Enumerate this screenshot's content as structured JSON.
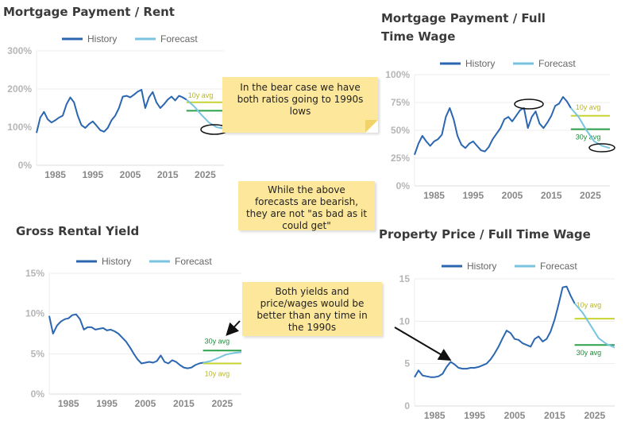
{
  "charts": [
    {
      "title": "Mortgage Payment / Rent",
      "legend": [
        "History",
        "Forecast"
      ],
      "avg_labels": [
        "10y avg"
      ],
      "chart_data": {
        "type": "line",
        "title": "Mortgage Payment / Rent",
        "xlim": [
          1980,
          2030
        ],
        "ylim": [
          0,
          300
        ],
        "x_ticks": [
          1985,
          1995,
          2005,
          2015,
          2025
        ],
        "y_ticks": [
          0,
          100,
          200,
          300
        ],
        "y_tick_labels": [
          "0%",
          "100%",
          "200%",
          "300%"
        ],
        "series": [
          {
            "name": "History",
            "color": "#2b66b1",
            "points": [
              [
                1980,
                85
              ],
              [
                1981,
                125
              ],
              [
                1982,
                140
              ],
              [
                1983,
                120
              ],
              [
                1984,
                112
              ],
              [
                1985,
                118
              ],
              [
                1986,
                125
              ],
              [
                1987,
                130
              ],
              [
                1988,
                160
              ],
              [
                1989,
                178
              ],
              [
                1990,
                165
              ],
              [
                1991,
                130
              ],
              [
                1992,
                105
              ],
              [
                1993,
                98
              ],
              [
                1994,
                108
              ],
              [
                1995,
                115
              ],
              [
                1996,
                104
              ],
              [
                1997,
                92
              ],
              [
                1998,
                88
              ],
              [
                1999,
                98
              ],
              [
                2000,
                118
              ],
              [
                2001,
                130
              ],
              [
                2002,
                150
              ],
              [
                2003,
                180
              ],
              [
                2004,
                182
              ],
              [
                2005,
                178
              ],
              [
                2006,
                185
              ],
              [
                2007,
                193
              ],
              [
                2008,
                198
              ],
              [
                2009,
                150
              ],
              [
                2010,
                178
              ],
              [
                2011,
                192
              ],
              [
                2012,
                165
              ],
              [
                2013,
                150
              ],
              [
                2014,
                160
              ],
              [
                2015,
                172
              ],
              [
                2016,
                180
              ],
              [
                2017,
                170
              ],
              [
                2018,
                182
              ],
              [
                2019,
                178
              ],
              [
                2020,
                172
              ]
            ]
          },
          {
            "name": "Forecast",
            "color": "#79c4e0",
            "points": [
              [
                2020,
                172
              ],
              [
                2022,
                155
              ],
              [
                2024,
                132
              ],
              [
                2026,
                112
              ],
              [
                2028,
                100
              ],
              [
                2030,
                96
              ]
            ]
          }
        ],
        "reference_lines": [
          {
            "label": "10y avg",
            "value": 165,
            "x_start": 2020,
            "color": "#c6d431"
          },
          {
            "label": "",
            "value": 143,
            "x_start": 2020,
            "color": "#2aa14a"
          }
        ]
      }
    },
    {
      "title": "Mortgage Payment / Full Time Wage",
      "legend": [
        "History",
        "Forecast"
      ],
      "avg_labels": [
        "10y avg",
        "30y avg"
      ],
      "chart_data": {
        "type": "line",
        "title": "Mortgage Payment / Full Time Wage",
        "xlim": [
          1980,
          2030
        ],
        "ylim": [
          0,
          100
        ],
        "x_ticks": [
          1985,
          1995,
          2005,
          2015,
          2025
        ],
        "y_ticks": [
          0,
          25,
          50,
          75,
          100
        ],
        "y_tick_labels": [
          "0%",
          "25%",
          "50%",
          "75%",
          "100%"
        ],
        "series": [
          {
            "name": "History",
            "color": "#2b66b1",
            "points": [
              [
                1980,
                28
              ],
              [
                1981,
                38
              ],
              [
                1982,
                45
              ],
              [
                1983,
                40
              ],
              [
                1984,
                36
              ],
              [
                1985,
                40
              ],
              [
                1986,
                42
              ],
              [
                1987,
                46
              ],
              [
                1988,
                62
              ],
              [
                1989,
                70
              ],
              [
                1990,
                60
              ],
              [
                1991,
                45
              ],
              [
                1992,
                37
              ],
              [
                1993,
                34
              ],
              [
                1994,
                38
              ],
              [
                1995,
                40
              ],
              [
                1996,
                36
              ],
              [
                1997,
                32
              ],
              [
                1998,
                31
              ],
              [
                1999,
                35
              ],
              [
                2000,
                42
              ],
              [
                2001,
                47
              ],
              [
                2002,
                52
              ],
              [
                2003,
                60
              ],
              [
                2004,
                62
              ],
              [
                2005,
                58
              ],
              [
                2006,
                63
              ],
              [
                2007,
                68
              ],
              [
                2008,
                70
              ],
              [
                2009,
                52
              ],
              [
                2010,
                62
              ],
              [
                2011,
                67
              ],
              [
                2012,
                56
              ],
              [
                2013,
                52
              ],
              [
                2014,
                57
              ],
              [
                2015,
                63
              ],
              [
                2016,
                72
              ],
              [
                2017,
                74
              ],
              [
                2018,
                80
              ],
              [
                2019,
                76
              ],
              [
                2020,
                70
              ]
            ]
          },
          {
            "name": "Forecast",
            "color": "#79c4e0",
            "points": [
              [
                2020,
                70
              ],
              [
                2022,
                62
              ],
              [
                2024,
                50
              ],
              [
                2026,
                40
              ],
              [
                2028,
                36
              ],
              [
                2030,
                34
              ]
            ]
          }
        ],
        "reference_lines": [
          {
            "label": "10y avg",
            "value": 63,
            "x_start": 2020,
            "color": "#c6d431"
          },
          {
            "label": "30y avg",
            "value": 51,
            "x_start": 2020,
            "color": "#2aa14a"
          }
        ]
      }
    },
    {
      "title": "Gross Rental Yield",
      "legend": [
        "History",
        "Forecast"
      ],
      "avg_labels": [
        "30y avg",
        "10y avg"
      ],
      "chart_data": {
        "type": "line",
        "title": "Gross Rental Yield",
        "xlim": [
          1980,
          2030
        ],
        "ylim": [
          0,
          15
        ],
        "x_ticks": [
          1985,
          1995,
          2005,
          2015,
          2025
        ],
        "y_ticks": [
          0,
          5,
          10,
          15
        ],
        "y_tick_labels": [
          "0%",
          "5%",
          "10%",
          "15%"
        ],
        "series": [
          {
            "name": "History",
            "color": "#2b66b1",
            "points": [
              [
                1980,
                9.7
              ],
              [
                1981,
                7.5
              ],
              [
                1982,
                8.5
              ],
              [
                1983,
                9.0
              ],
              [
                1984,
                9.3
              ],
              [
                1985,
                9.4
              ],
              [
                1986,
                9.8
              ],
              [
                1987,
                9.9
              ],
              [
                1988,
                9.3
              ],
              [
                1989,
                8.0
              ],
              [
                1990,
                8.3
              ],
              [
                1991,
                8.3
              ],
              [
                1992,
                8.0
              ],
              [
                1993,
                8.1
              ],
              [
                1994,
                8.2
              ],
              [
                1995,
                7.9
              ],
              [
                1996,
                8.0
              ],
              [
                1997,
                7.8
              ],
              [
                1998,
                7.5
              ],
              [
                1999,
                7.0
              ],
              [
                2000,
                6.5
              ],
              [
                2001,
                5.8
              ],
              [
                2002,
                5.0
              ],
              [
                2003,
                4.3
              ],
              [
                2004,
                3.8
              ],
              [
                2005,
                3.9
              ],
              [
                2006,
                4.0
              ],
              [
                2007,
                3.9
              ],
              [
                2008,
                4.1
              ],
              [
                2009,
                4.8
              ],
              [
                2010,
                4.0
              ],
              [
                2011,
                3.8
              ],
              [
                2012,
                4.2
              ],
              [
                2013,
                4.0
              ],
              [
                2014,
                3.6
              ],
              [
                2015,
                3.3
              ],
              [
                2016,
                3.2
              ],
              [
                2017,
                3.3
              ],
              [
                2018,
                3.6
              ],
              [
                2019,
                3.8
              ],
              [
                2020,
                3.9
              ]
            ]
          },
          {
            "name": "Forecast",
            "color": "#79c4e0",
            "points": [
              [
                2020,
                3.9
              ],
              [
                2022,
                4.1
              ],
              [
                2024,
                4.5
              ],
              [
                2026,
                4.9
              ],
              [
                2028,
                5.1
              ],
              [
                2030,
                5.2
              ]
            ]
          }
        ],
        "reference_lines": [
          {
            "label": "30y avg",
            "value": 5.4,
            "x_start": 2020,
            "color": "#2aa14a"
          },
          {
            "label": "10y avg",
            "value": 3.8,
            "x_start": 2020,
            "color": "#c6d431"
          }
        ]
      }
    },
    {
      "title": "Property Price / Full Time Wage",
      "legend": [
        "History",
        "Forecast"
      ],
      "avg_labels": [
        "10y avg",
        "30y avg"
      ],
      "chart_data": {
        "type": "line",
        "title": "Property Price / Full Time Wage",
        "xlim": [
          1980,
          2030
        ],
        "ylim": [
          0,
          15
        ],
        "x_ticks": [
          1985,
          1995,
          2005,
          2015,
          2025
        ],
        "y_ticks": [
          0,
          5,
          10,
          15
        ],
        "y_tick_labels": [
          "0",
          "5",
          "10",
          "15"
        ],
        "series": [
          {
            "name": "History",
            "color": "#2b66b1",
            "points": [
              [
                1980,
                3.4
              ],
              [
                1981,
                4.2
              ],
              [
                1982,
                3.6
              ],
              [
                1983,
                3.5
              ],
              [
                1984,
                3.4
              ],
              [
                1985,
                3.4
              ],
              [
                1986,
                3.5
              ],
              [
                1987,
                3.8
              ],
              [
                1988,
                4.6
              ],
              [
                1989,
                5.2
              ],
              [
                1990,
                4.9
              ],
              [
                1991,
                4.5
              ],
              [
                1992,
                4.4
              ],
              [
                1993,
                4.4
              ],
              [
                1994,
                4.5
              ],
              [
                1995,
                4.5
              ],
              [
                1996,
                4.6
              ],
              [
                1997,
                4.8
              ],
              [
                1998,
                5.0
              ],
              [
                1999,
                5.5
              ],
              [
                2000,
                6.2
              ],
              [
                2001,
                7.0
              ],
              [
                2002,
                8.0
              ],
              [
                2003,
                8.9
              ],
              [
                2004,
                8.6
              ],
              [
                2005,
                7.9
              ],
              [
                2006,
                7.8
              ],
              [
                2007,
                7.4
              ],
              [
                2008,
                7.2
              ],
              [
                2009,
                7.0
              ],
              [
                2010,
                7.9
              ],
              [
                2011,
                8.2
              ],
              [
                2012,
                7.6
              ],
              [
                2013,
                7.9
              ],
              [
                2014,
                8.8
              ],
              [
                2015,
                10.2
              ],
              [
                2016,
                12.0
              ],
              [
                2017,
                14.0
              ],
              [
                2018,
                14.1
              ],
              [
                2019,
                13.0
              ],
              [
                2020,
                12.1
              ]
            ]
          },
          {
            "name": "Forecast",
            "color": "#79c4e0",
            "points": [
              [
                2020,
                12.1
              ],
              [
                2022,
                11.0
              ],
              [
                2024,
                9.5
              ],
              [
                2026,
                8.0
              ],
              [
                2028,
                7.3
              ],
              [
                2030,
                6.9
              ]
            ]
          }
        ],
        "reference_lines": [
          {
            "label": "10y avg",
            "value": 10.3,
            "x_start": 2020,
            "color": "#c6d431"
          },
          {
            "label": "30y avg",
            "value": 7.2,
            "x_start": 2020,
            "color": "#2aa14a"
          }
        ]
      }
    }
  ],
  "notes": [
    "In the bear case we have both ratios going to 1990s lows",
    "While the above forecasts are bearish, they are not \"as bad as it could get\"",
    "Both yields and price/wages would be better than any time in the 1990s"
  ]
}
